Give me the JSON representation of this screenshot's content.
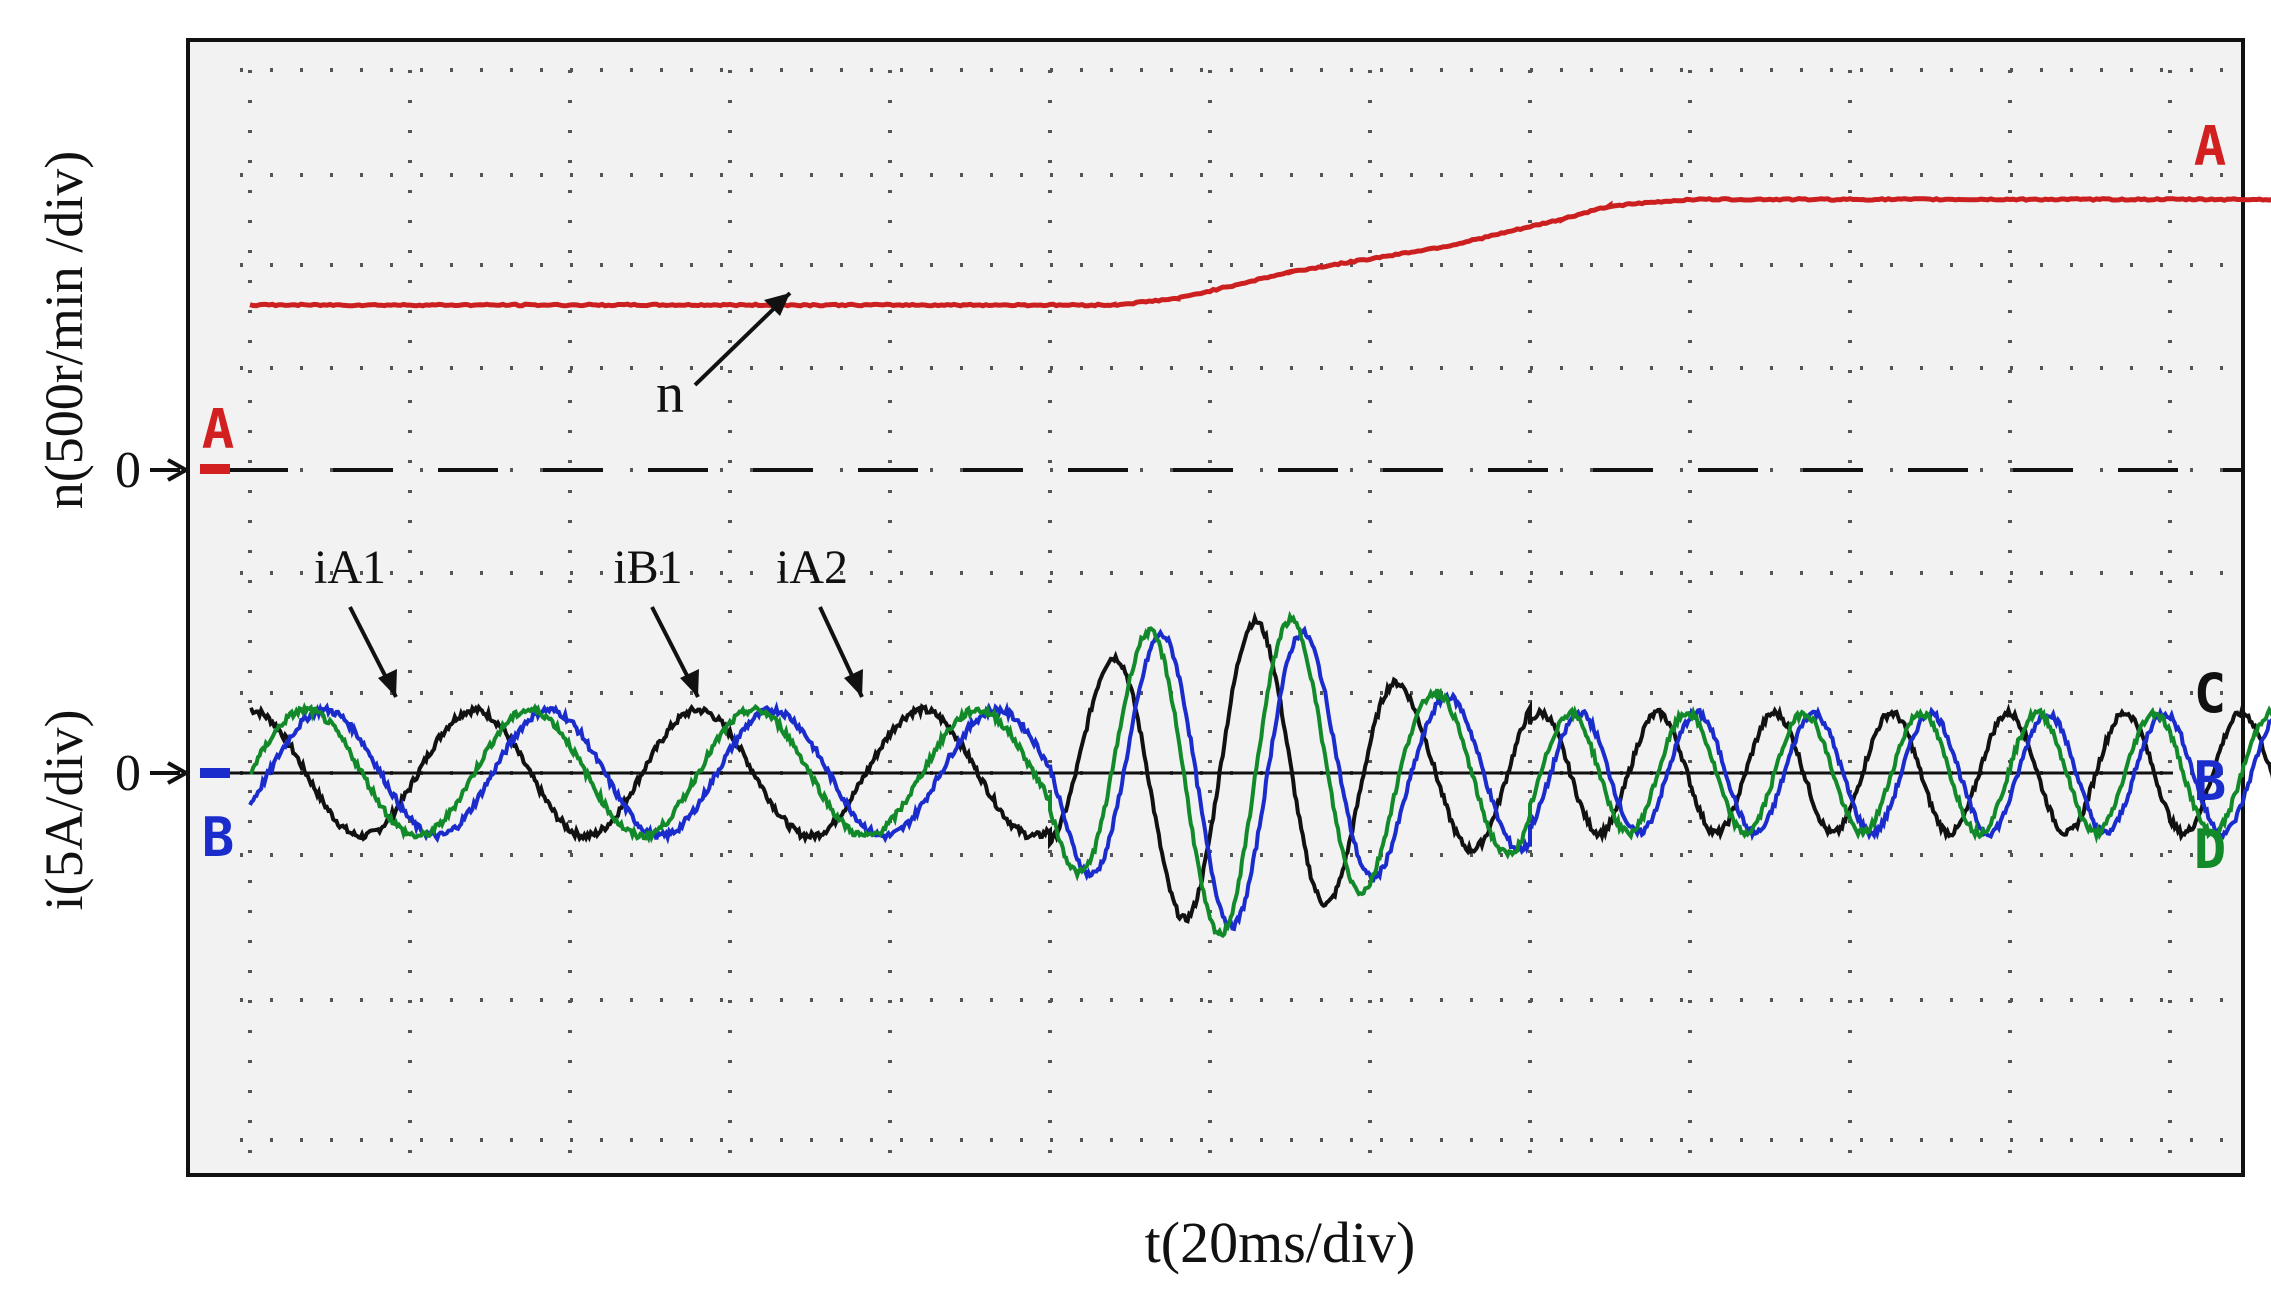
{
  "chart_data": {
    "type": "line",
    "xlabel": "t(20ms/div)",
    "ylabel_speed": "n(500r/min /div)",
    "ylabel_current": "i(5A/div)",
    "grid": "dotted",
    "divisions": {
      "x": 13,
      "y": 8
    },
    "zero_label": "0",
    "channel_markers": {
      "speed_zero": "A",
      "current_zero": "B",
      "right": [
        "A",
        "C",
        "B",
        "D"
      ]
    },
    "annotations": [
      {
        "text": "n",
        "target": "speed"
      },
      {
        "text": "iA1",
        "target": "black current"
      },
      {
        "text": "iB1",
        "target": "blue current"
      },
      {
        "text": "iA2",
        "target": "green current"
      }
    ],
    "series": [
      {
        "channel": "A",
        "color": "#cc2020",
        "unit_per_div": "500 r/min",
        "x_div": [
          0,
          5.4,
          5.8,
          6.5,
          7.5,
          8.2,
          8.5,
          9.0,
          13.0
        ],
        "y_div_from_zero": [
          1.25,
          1.25,
          1.3,
          1.5,
          1.7,
          1.9,
          2.0,
          2.05,
          2.05
        ]
      },
      {
        "channel": "C",
        "color": "#111111",
        "unit_per_div": "5 A",
        "phase_deg": 90,
        "segments": [
          {
            "x_start_div": 0,
            "x_end_div": 5,
            "amplitude_div": 0.42,
            "period_div": 1.4
          },
          {
            "x_start_div": 5,
            "x_end_div": 8,
            "amplitude_div": 0.85,
            "period_div": 0.9
          },
          {
            "x_start_div": 8,
            "x_end_div": 12.9,
            "amplitude_div": 0.4,
            "period_div": 0.73
          }
        ]
      },
      {
        "channel": "B",
        "color": "#1a2ccc",
        "unit_per_div": "5 A",
        "phase_deg": -30,
        "segments": [
          {
            "x_start_div": 0,
            "x_end_div": 5,
            "amplitude_div": 0.42,
            "period_div": 1.4
          },
          {
            "x_start_div": 5,
            "x_end_div": 8,
            "amplitude_div": 0.85,
            "period_div": 0.9
          },
          {
            "x_start_div": 8,
            "x_end_div": 12.9,
            "amplitude_div": 0.4,
            "period_div": 0.73
          }
        ]
      },
      {
        "channel": "D",
        "color": "#138a2a",
        "unit_per_div": "5 A",
        "phase_deg": 0,
        "segments": [
          {
            "x_start_div": 0,
            "x_end_div": 5,
            "amplitude_div": 0.42,
            "period_div": 1.4
          },
          {
            "x_start_div": 5,
            "x_end_div": 8,
            "amplitude_div": 0.9,
            "period_div": 0.9
          },
          {
            "x_start_div": 8,
            "x_end_div": 12.9,
            "amplitude_div": 0.4,
            "period_div": 0.73
          }
        ]
      }
    ]
  }
}
